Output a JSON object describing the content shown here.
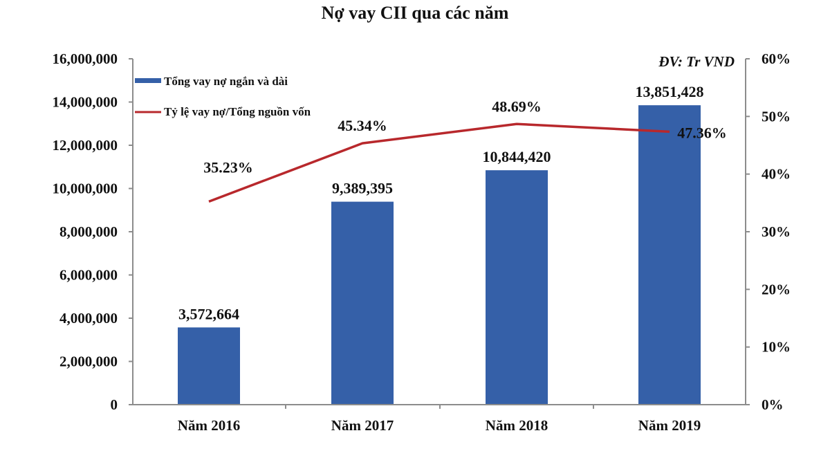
{
  "chart_data": {
    "type": "bar+line",
    "title": "Nợ vay CII qua các năm",
    "unit_note": "ĐV: Tr VND",
    "categories": [
      "Năm 2016",
      "Năm 2017",
      "Năm 2018",
      "Năm 2019"
    ],
    "series": [
      {
        "name": "Tổng vay nợ ngắn và dài",
        "type": "bar",
        "axis": "left",
        "color": "#3560a8",
        "values": [
          3572664,
          9389395,
          10844420,
          13851428
        ],
        "labels": [
          "3,572,664",
          "9,389,395",
          "10,844,420",
          "13,851,428"
        ]
      },
      {
        "name": "Tỷ lệ vay nợ/Tổng nguồn vốn",
        "type": "line",
        "axis": "right",
        "color": "#b8282c",
        "values": [
          35.23,
          45.34,
          48.69,
          47.36
        ],
        "labels": [
          "35.23%",
          "45.34%",
          "48.69%",
          "47.36%"
        ]
      }
    ],
    "left_axis": {
      "ylim": [
        0,
        16000000
      ],
      "ticks": [
        "0",
        "2,000,000",
        "4,000,000",
        "6,000,000",
        "8,000,000",
        "10,000,000",
        "12,000,000",
        "14,000,000",
        "16,000,000"
      ]
    },
    "right_axis": {
      "ylim": [
        0,
        60
      ],
      "ticks": [
        "0%",
        "10%",
        "20%",
        "30%",
        "40%",
        "50%",
        "60%"
      ]
    },
    "grid": false,
    "legend_position": "top-left inside"
  }
}
